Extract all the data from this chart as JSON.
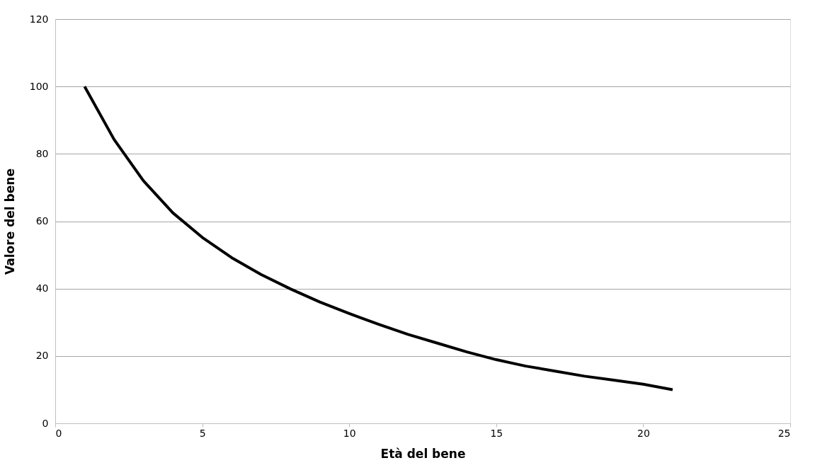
{
  "chart_data": {
    "type": "line",
    "xlabel": "Età del bene",
    "ylabel": "Valore del bene",
    "x": [
      1,
      2,
      3,
      4,
      5,
      6,
      7,
      8,
      9,
      10,
      11,
      12,
      13,
      14,
      15,
      16,
      17,
      18,
      19,
      20,
      21
    ],
    "series": [
      {
        "color": "#000000",
        "values": [
          100,
          84.3,
          72,
          62.5,
          55.2,
          49.2,
          44.2,
          39.9,
          36,
          32.6,
          29.4,
          26.4,
          23.8,
          21.2,
          18.9,
          17,
          15.5,
          14,
          12.8,
          11.6,
          10
        ]
      }
    ],
    "xlim": [
      0,
      25
    ],
    "xticks": [
      0,
      5,
      10,
      15,
      20,
      25
    ],
    "ylim": [
      0,
      120
    ],
    "yticks": [
      0,
      20,
      40,
      60,
      80,
      100,
      120
    ],
    "grid": "y",
    "legend": false,
    "marker": "none",
    "line_style": "solid"
  }
}
